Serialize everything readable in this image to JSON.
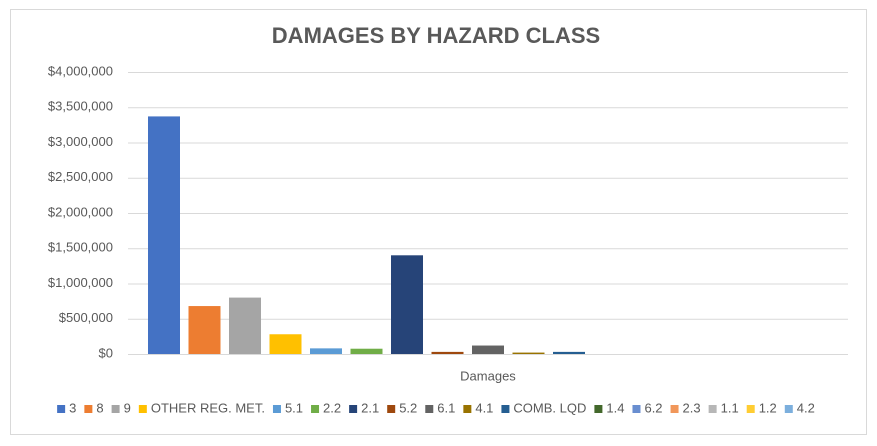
{
  "chart_data": {
    "type": "bar",
    "title": "DAMAGES BY HAZARD CLASS",
    "categories": [
      "Damages"
    ],
    "series": [
      {
        "name": "3",
        "color": "#4472c4",
        "values": [
          3370000
        ]
      },
      {
        "name": "8",
        "color": "#ed7d31",
        "values": [
          680000
        ]
      },
      {
        "name": "9",
        "color": "#a5a5a5",
        "values": [
          800000
        ]
      },
      {
        "name": "OTHER REG. MET.",
        "color": "#ffc000",
        "values": [
          280000
        ]
      },
      {
        "name": "5.1",
        "color": "#5b9bd5",
        "values": [
          80000
        ]
      },
      {
        "name": "2.2",
        "color": "#70ad47",
        "values": [
          75000
        ]
      },
      {
        "name": "2.1",
        "color": "#264478",
        "values": [
          1400000
        ]
      },
      {
        "name": "5.2",
        "color": "#9e480e",
        "values": [
          30000
        ]
      },
      {
        "name": "6.1",
        "color": "#636363",
        "values": [
          120000
        ]
      },
      {
        "name": "4.1",
        "color": "#997300",
        "values": [
          20000
        ]
      },
      {
        "name": "COMB. LQD",
        "color": "#255e91",
        "values": [
          30000
        ]
      },
      {
        "name": "1.4",
        "color": "#43682b",
        "values": [
          0
        ]
      },
      {
        "name": "6.2",
        "color": "#698ed0",
        "values": [
          0
        ]
      },
      {
        "name": "2.3",
        "color": "#f1975a",
        "values": [
          0
        ]
      },
      {
        "name": "1.1",
        "color": "#b7b7b7",
        "values": [
          0
        ]
      },
      {
        "name": "1.2",
        "color": "#ffcd33",
        "values": [
          0
        ]
      },
      {
        "name": "4.2",
        "color": "#7cafdd",
        "values": [
          0
        ]
      }
    ],
    "ylim": [
      0,
      4000000
    ],
    "yticks": [
      {
        "value": 0,
        "label": "$0"
      },
      {
        "value": 500000,
        "label": "$500,000"
      },
      {
        "value": 1000000,
        "label": "$1,000,000"
      },
      {
        "value": 1500000,
        "label": "$1,500,000"
      },
      {
        "value": 2000000,
        "label": "$2,000,000"
      },
      {
        "value": 2500000,
        "label": "$2,500,000"
      },
      {
        "value": 3000000,
        "label": "$3,000,000"
      },
      {
        "value": 3500000,
        "label": "$3,500,000"
      },
      {
        "value": 4000000,
        "label": "$4,000,000"
      }
    ],
    "grid": true,
    "legend": "bottom"
  }
}
